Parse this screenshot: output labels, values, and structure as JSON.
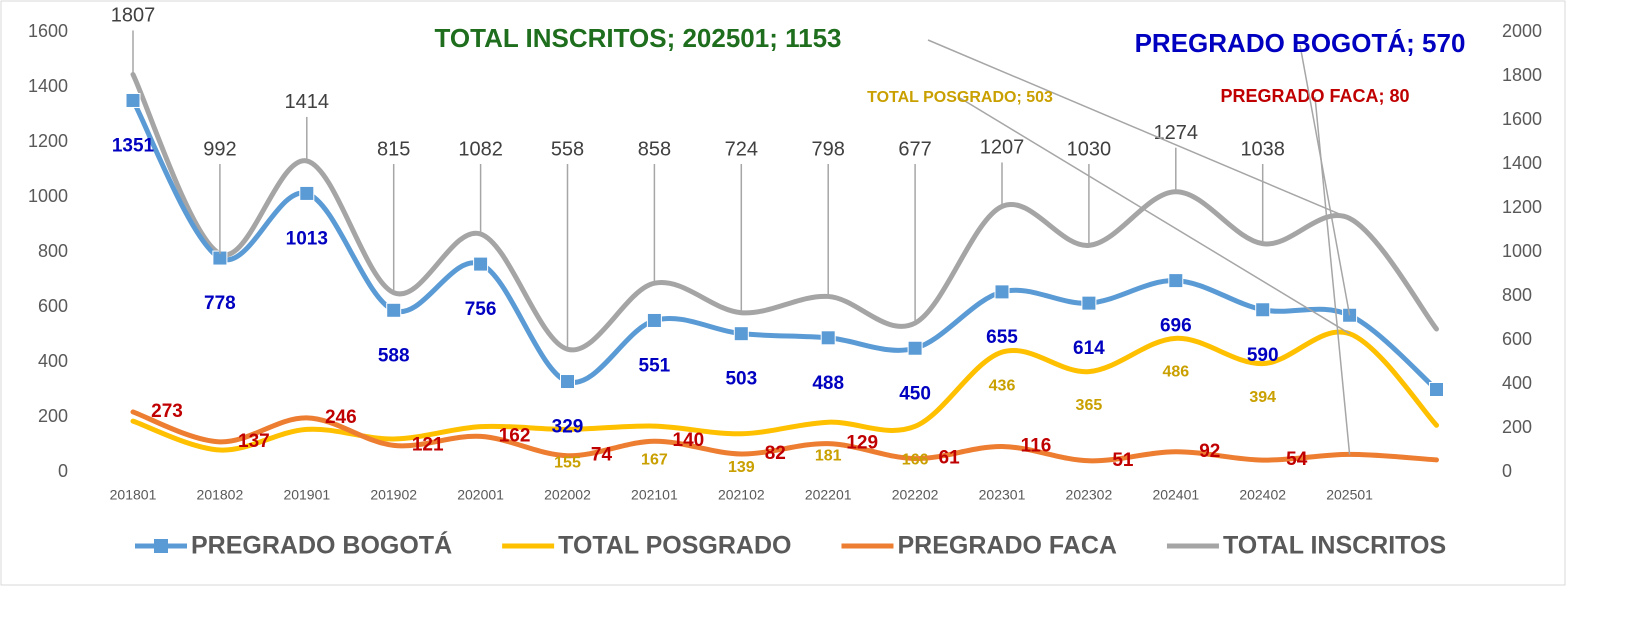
{
  "chart_data": {
    "type": "line",
    "categories": [
      "201801",
      "201802",
      "201901",
      "201902",
      "202001",
      "202002",
      "202101",
      "202102",
      "202201",
      "202202",
      "202301",
      "202302",
      "202401",
      "202402",
      "202501",
      null
    ],
    "ylim": [
      0,
      1600
    ],
    "yticks": [
      0,
      200,
      400,
      600,
      800,
      1000,
      1200,
      1400,
      1600
    ],
    "y2lim": [
      0,
      2000
    ],
    "y2ticks": [
      0,
      200,
      400,
      600,
      800,
      1000,
      1200,
      1400,
      1600,
      1800,
      2000
    ],
    "grid": false,
    "smooth": true,
    "legend": "bottom",
    "series": [
      {
        "name": "PREGRADO BOGOTÁ",
        "color": "#5b9bd5",
        "label_color": "#0000c0",
        "marker": "square",
        "values": [
          1351,
          778,
          1013,
          588,
          756,
          329,
          551,
          503,
          488,
          450,
          655,
          614,
          696,
          590,
          570,
          300
        ],
        "value_labels": [
          "1351",
          "778",
          "1013",
          "588",
          "756",
          "329",
          "551",
          "503",
          "488",
          "450",
          "655",
          "614",
          "696",
          "590",
          "PREGRADO BOGOTÁ; 570",
          null
        ]
      },
      {
        "name": "TOTAL POSGRADO",
        "color": "#ffc000",
        "label_color": "#c9a000",
        "values": [
          185,
          80,
          155,
          120,
          165,
          155,
          167,
          139,
          181,
          166,
          436,
          365,
          486,
          394,
          503,
          170
        ],
        "value_labels": [
          null,
          null,
          null,
          null,
          null,
          "155",
          "167",
          "139",
          "181",
          "166",
          "436",
          "365",
          "486",
          "394",
          "TOTAL POSGRADO; 503",
          null
        ]
      },
      {
        "name": "PREGRADO FACA",
        "color": "#ed7d31",
        "label_color": "#c00000",
        "axis": "y2",
        "values": [
          273,
          137,
          246,
          121,
          162,
          74,
          140,
          82,
          129,
          61,
          116,
          51,
          92,
          54,
          80,
          55
        ],
        "value_labels": [
          "273",
          "137",
          "246",
          "121",
          "162",
          "74",
          "140",
          "82",
          "129",
          "61",
          "116",
          "51",
          "92",
          "54",
          "PREGRADO FACA; 80",
          null
        ]
      },
      {
        "name": "TOTAL INSCRITOS",
        "color": "#a5a5a5",
        "label_color": "#404040",
        "annotation_color": "#1e6e1e",
        "axis": "y2",
        "values": [
          1807,
          992,
          1414,
          815,
          1082,
          558,
          858,
          724,
          798,
          677,
          1207,
          1030,
          1274,
          1038,
          1153,
          650
        ],
        "value_labels": [
          "1807",
          "992",
          "1414",
          "815",
          "1082",
          "558",
          "858",
          "724",
          "798",
          "677",
          "1207",
          "1030",
          "1274",
          "1038",
          "TOTAL INSCRITOS; 202501; 1153",
          null
        ]
      }
    ]
  }
}
